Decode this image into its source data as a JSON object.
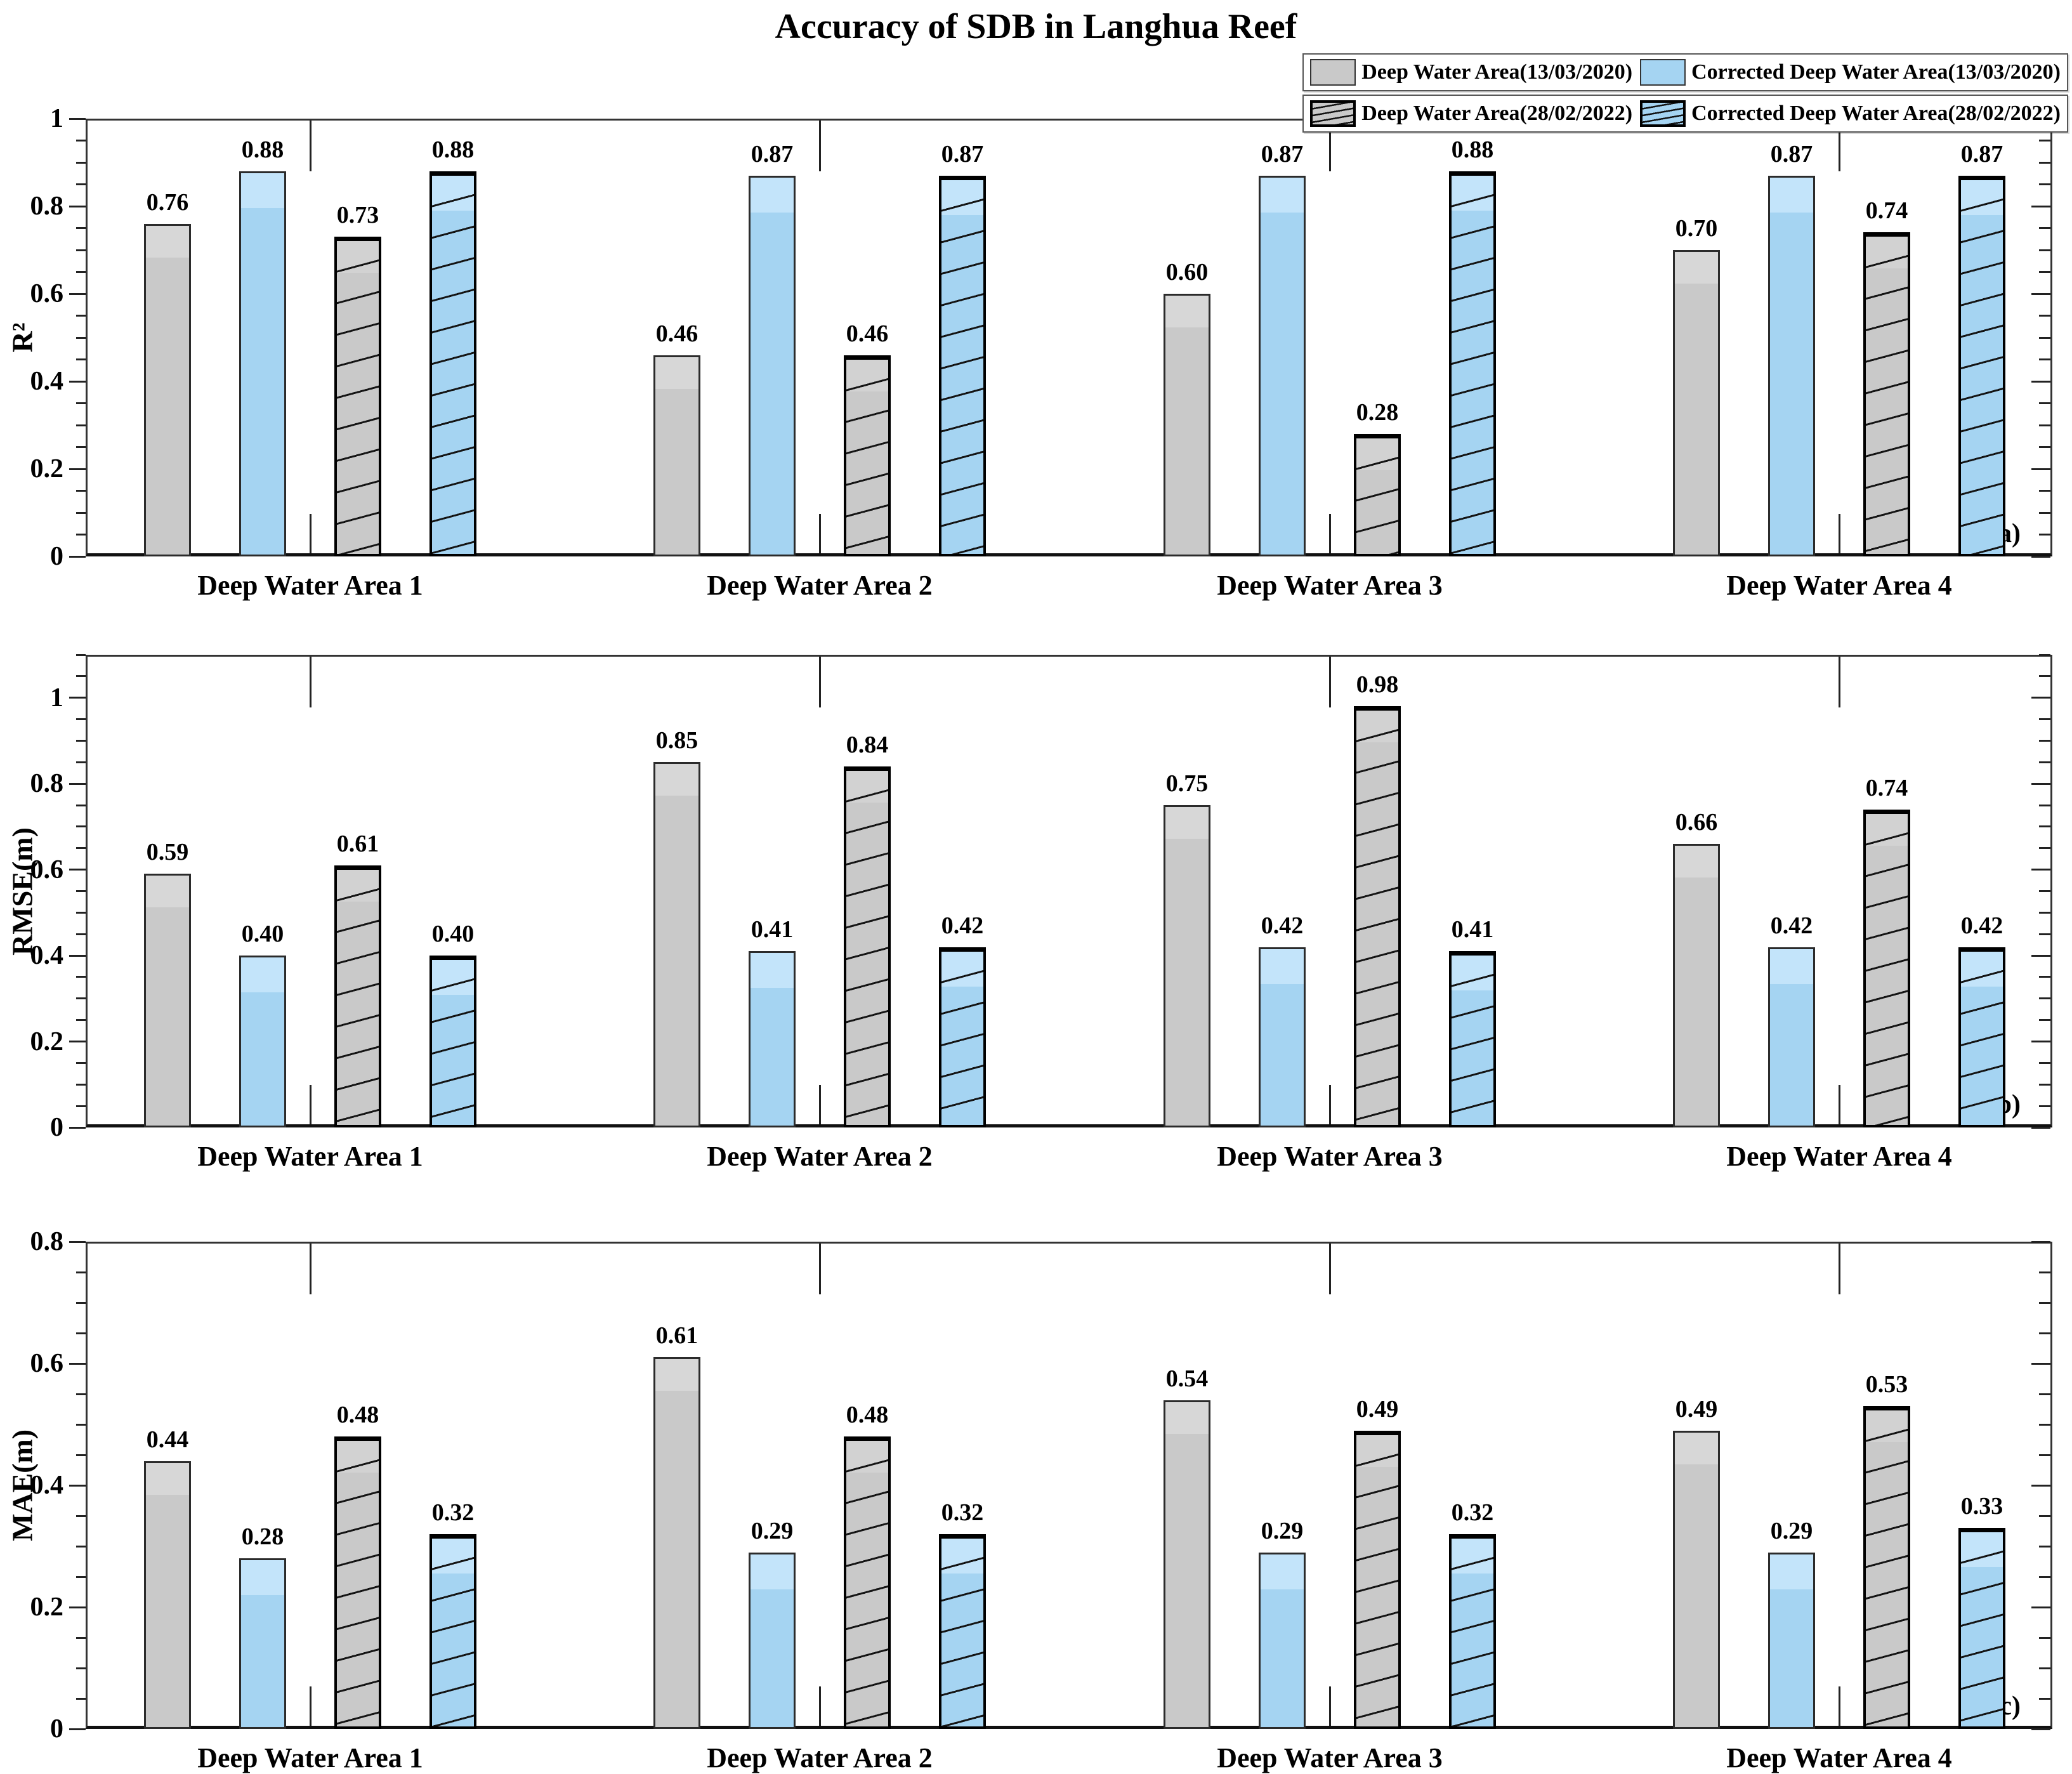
{
  "title": "Accuracy of SDB in Langhua Reef",
  "colors": {
    "bar_gray": "#c9c9c9",
    "bar_blue": "#a5d4f2",
    "bar_blue_light_top": "#c3e4fa",
    "bar_border": "#000000",
    "axis": "#222222"
  },
  "legend": {
    "position": "top-right",
    "items": [
      {
        "label": "Deep Water Area(13/03/2020)",
        "style": "solid-gray"
      },
      {
        "label": "Corrected Deep Water Area(13/03/2020)",
        "style": "solid-blue"
      },
      {
        "label": "Deep Water Area(28/02/2022)",
        "style": "hatch-gray"
      },
      {
        "label": "Corrected Deep Water Area(28/02/2022)",
        "style": "hatch-blue"
      }
    ]
  },
  "chart_data": [
    {
      "type": "bar",
      "tag": "(a)",
      "ylabel": "R²",
      "ylim": [
        0,
        1.0
      ],
      "ymax": 1.0,
      "yminor_step": 0.05,
      "ymajor_step": 0.2,
      "grid": false,
      "yticks": [
        {
          "value": 0,
          "label": "0"
        },
        {
          "value": 0.2,
          "label": "0.2"
        },
        {
          "value": 0.4,
          "label": "0.4"
        },
        {
          "value": 0.6,
          "label": "0.6"
        },
        {
          "value": 0.8,
          "label": "0.8"
        },
        {
          "value": 1.0,
          "label": "1"
        }
      ],
      "categories": [
        "Deep Water Area 1",
        "Deep Water Area 2",
        "Deep Water Area 3",
        "Deep Water Area 4"
      ],
      "series": [
        {
          "name": "Deep Water Area(13/03/2020)",
          "style": "solid-gray",
          "values": [
            0.76,
            0.46,
            0.6,
            0.7
          ]
        },
        {
          "name": "Corrected Deep Water Area(13/03/2020)",
          "style": "solid-blue",
          "values": [
            0.88,
            0.87,
            0.87,
            0.87
          ]
        },
        {
          "name": "Deep Water Area(28/02/2022)",
          "style": "hatch-gray",
          "values": [
            0.73,
            0.46,
            0.28,
            0.74
          ]
        },
        {
          "name": "Corrected Deep Water Area(28/02/2022)",
          "style": "hatch-blue",
          "values": [
            0.88,
            0.87,
            0.88,
            0.87
          ]
        }
      ]
    },
    {
      "type": "bar",
      "tag": "(b)",
      "ylabel": "RMSE(m)",
      "ylim": [
        0,
        1.1
      ],
      "ymax": 1.1,
      "yminor_step": 0.05,
      "ymajor_step": 0.2,
      "grid": false,
      "yticks": [
        {
          "value": 0,
          "label": "0"
        },
        {
          "value": 0.2,
          "label": "0.2"
        },
        {
          "value": 0.4,
          "label": "0.4"
        },
        {
          "value": 0.6,
          "label": "0.6"
        },
        {
          "value": 0.8,
          "label": "0.8"
        },
        {
          "value": 1.0,
          "label": "1"
        }
      ],
      "categories": [
        "Deep Water Area 1",
        "Deep Water Area 2",
        "Deep Water Area 3",
        "Deep Water Area 4"
      ],
      "series": [
        {
          "name": "Deep Water Area(13/03/2020)",
          "style": "solid-gray",
          "values": [
            0.59,
            0.85,
            0.75,
            0.66
          ]
        },
        {
          "name": "Corrected Deep Water Area(13/03/2020)",
          "style": "solid-blue",
          "values": [
            0.4,
            0.41,
            0.42,
            0.42
          ]
        },
        {
          "name": "Deep Water Area(28/02/2022)",
          "style": "hatch-gray",
          "values": [
            0.61,
            0.84,
            0.98,
            0.74
          ]
        },
        {
          "name": "Corrected Deep Water Area(28/02/2022)",
          "style": "hatch-blue",
          "values": [
            0.4,
            0.42,
            0.41,
            0.42
          ]
        }
      ]
    },
    {
      "type": "bar",
      "tag": "(c)",
      "ylabel": "MAE(m)",
      "ylim": [
        0,
        0.8
      ],
      "ymax": 0.8,
      "yminor_step": 0.05,
      "ymajor_step": 0.2,
      "grid": false,
      "yticks": [
        {
          "value": 0,
          "label": "0"
        },
        {
          "value": 0.2,
          "label": "0.2"
        },
        {
          "value": 0.4,
          "label": "0.4"
        },
        {
          "value": 0.6,
          "label": "0.6"
        },
        {
          "value": 0.8,
          "label": "0.8"
        }
      ],
      "categories": [
        "Deep Water Area 1",
        "Deep Water Area 2",
        "Deep Water Area 3",
        "Deep Water Area 4"
      ],
      "series": [
        {
          "name": "Deep Water Area(13/03/2020)",
          "style": "solid-gray",
          "values": [
            0.44,
            0.61,
            0.54,
            0.49
          ]
        },
        {
          "name": "Corrected Deep Water Area(13/03/2020)",
          "style": "solid-blue",
          "values": [
            0.28,
            0.29,
            0.29,
            0.29
          ]
        },
        {
          "name": "Deep Water Area(28/02/2022)",
          "style": "hatch-gray",
          "values": [
            0.48,
            0.48,
            0.49,
            0.53
          ]
        },
        {
          "name": "Corrected Deep Water Area(28/02/2022)",
          "style": "hatch-blue",
          "values": [
            0.32,
            0.32,
            0.32,
            0.33
          ]
        }
      ]
    }
  ]
}
